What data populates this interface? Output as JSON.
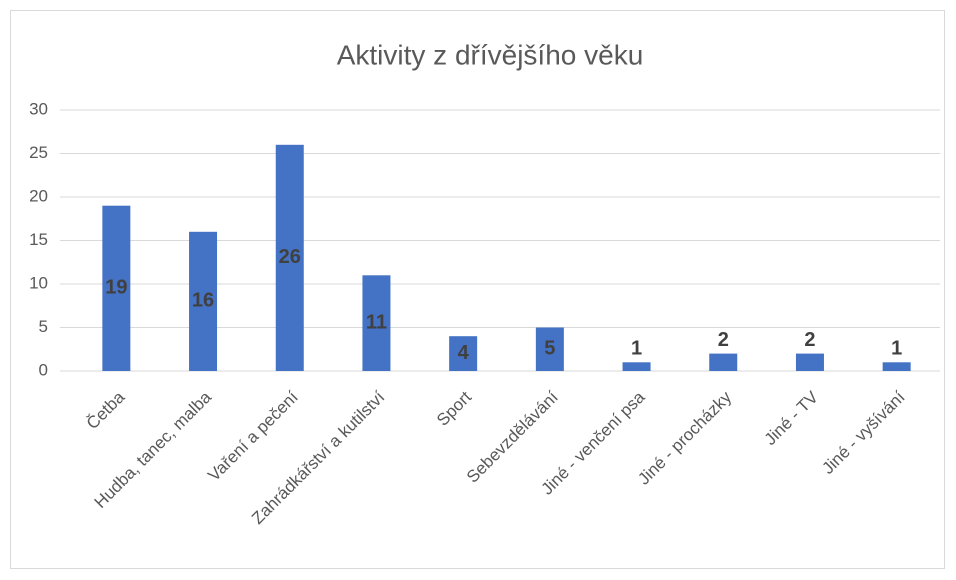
{
  "chart_data": {
    "type": "bar",
    "title": "Aktivity z dřívějšího věku",
    "categories": [
      "Četba",
      "Hudba, tanec, malba",
      "Vaření a pečení",
      "Zahrádkářství a kutilství",
      "Sport",
      "Sebevzdělávání",
      "Jiné - venčení psa",
      "Jiné - procházky",
      "Jiné - TV",
      "Jiné - vyšívání"
    ],
    "values": [
      19,
      16,
      26,
      11,
      4,
      5,
      1,
      2,
      2,
      1
    ],
    "color": "#4472c4",
    "ylim": [
      0,
      30
    ],
    "yticks": [
      0,
      5,
      10,
      15,
      20,
      25,
      30
    ],
    "grid": true
  }
}
